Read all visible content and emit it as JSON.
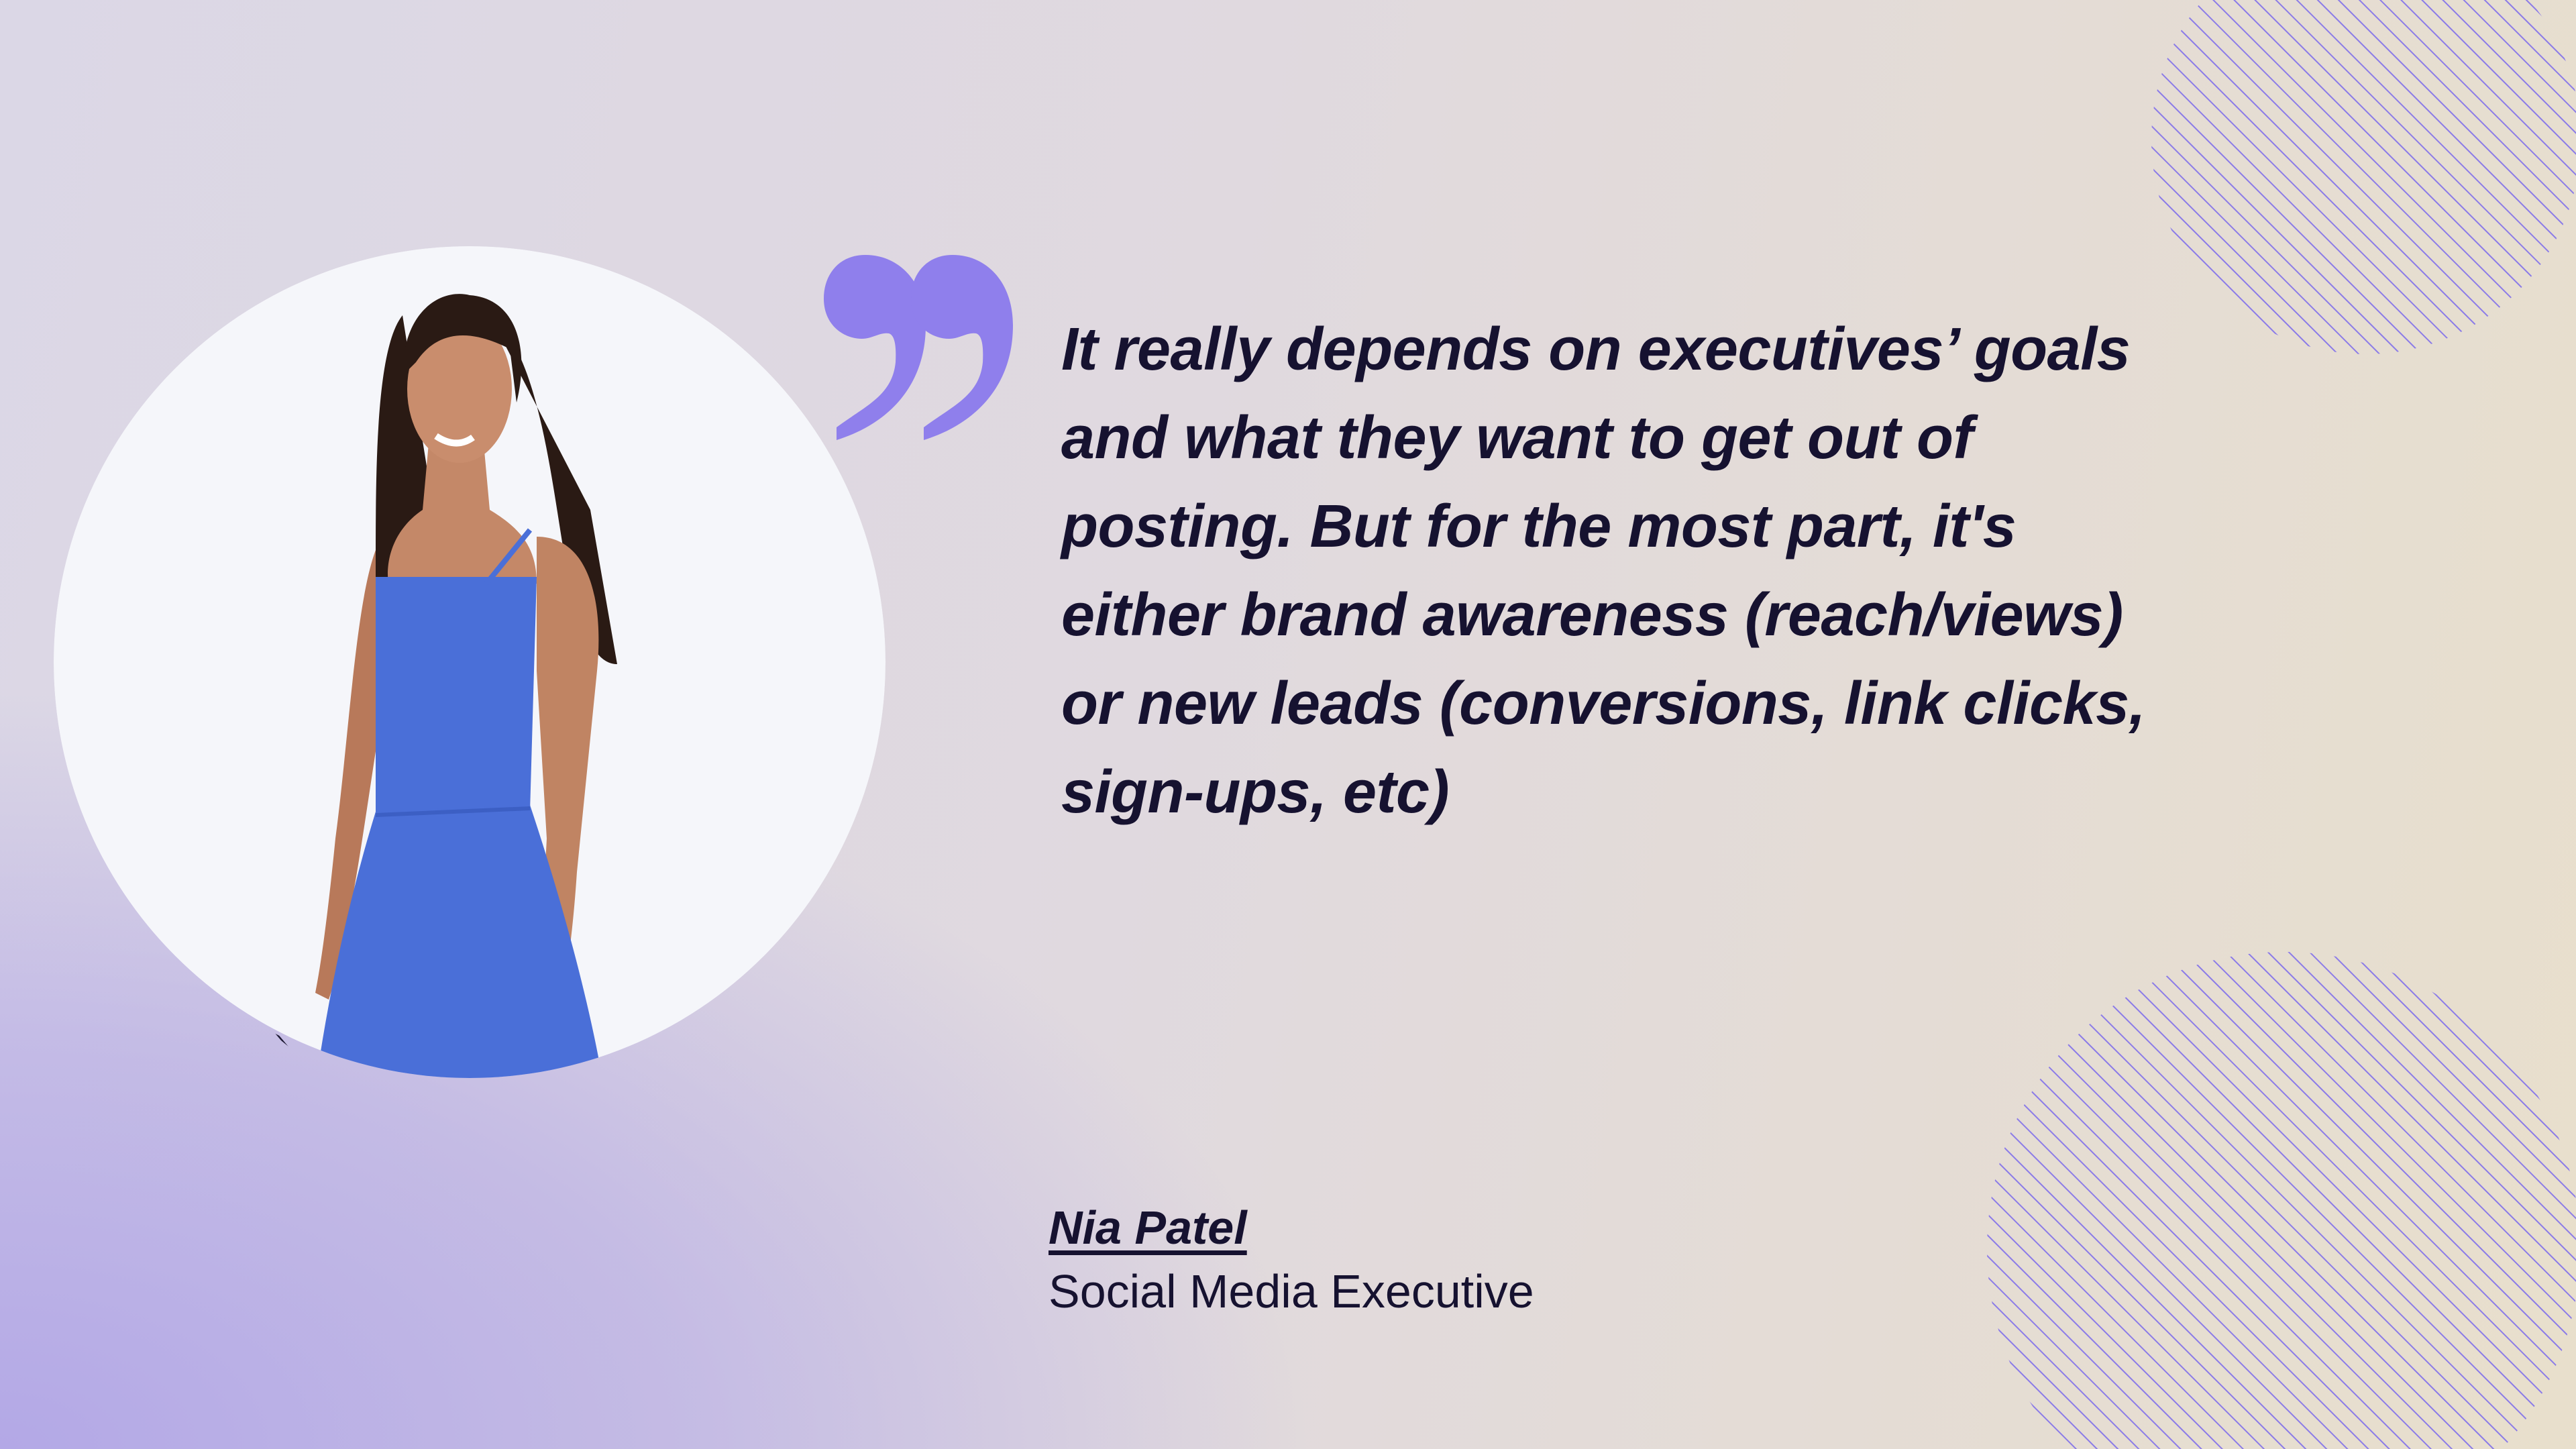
{
  "quote": {
    "lines": [
      "It really depends on executives’ goals",
      "and what they want to get out of",
      "posting. But for the most part, it's",
      "either brand awareness (reach/views)",
      "or new leads (conversions, link clicks,",
      "sign-ups, etc)"
    ],
    "icon": "quotation-mark-icon"
  },
  "author": {
    "name": "Nia Patel",
    "title": "Social Media Executive"
  },
  "colors": {
    "accent": "#8f7fec",
    "text": "#161230",
    "dress": "#4a6fd8"
  }
}
